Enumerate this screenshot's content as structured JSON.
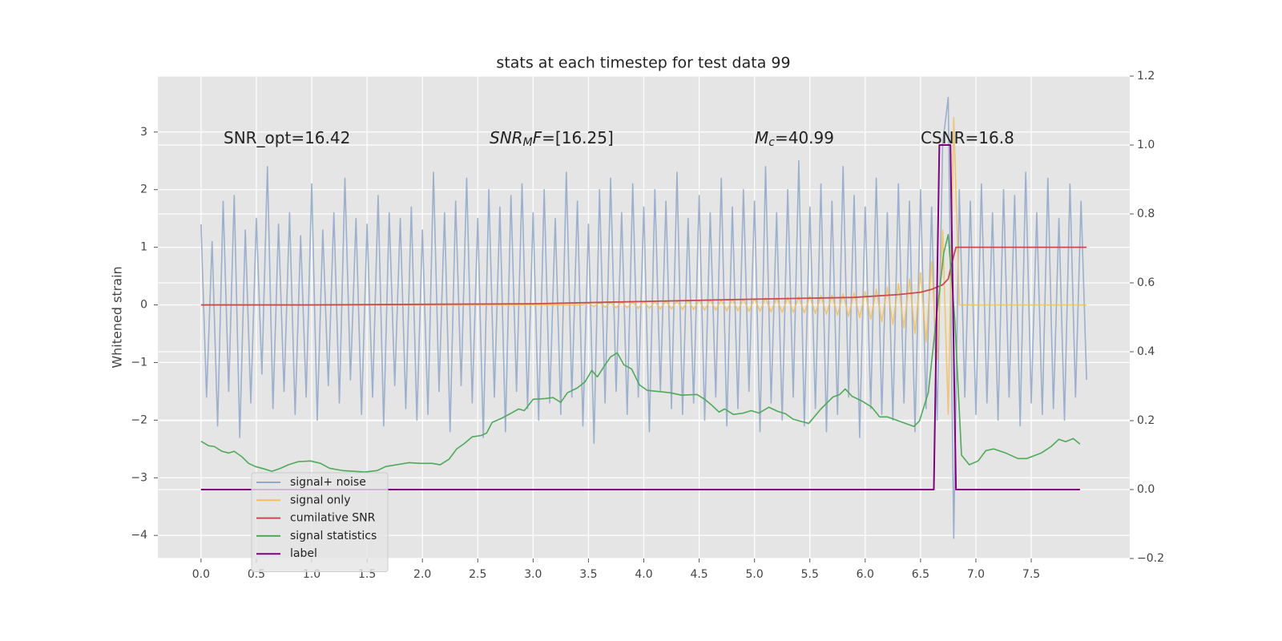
{
  "chart_data": {
    "type": "line",
    "title": "stats at each timestep for test data 99",
    "ylabel": "Whitened strain",
    "annotations": [
      [
        "SNR_opt=16.42"
      ],
      [
        "SNR",
        "M",
        "F",
        "=[16.25]"
      ],
      [
        "M",
        "c",
        "=40.99"
      ],
      [
        "CSNR=16.8"
      ]
    ],
    "xlim": [
      -0.39,
      8.39
    ],
    "ylim": [
      -4.4,
      3.97
    ],
    "y2lim": [
      -0.2,
      1.2
    ],
    "xticks": [
      {
        "value": 0,
        "label": "0.0"
      },
      {
        "value": 0.5,
        "label": "0.5"
      },
      {
        "value": 1,
        "label": "1.0"
      },
      {
        "value": 1.5,
        "label": "1.5"
      },
      {
        "value": 2,
        "label": "2.0"
      },
      {
        "value": 2.5,
        "label": "2.5"
      },
      {
        "value": 3,
        "label": "3.0"
      },
      {
        "value": 3.5,
        "label": "3.5"
      },
      {
        "value": 4,
        "label": "4.0"
      },
      {
        "value": 4.5,
        "label": "4.5"
      },
      {
        "value": 5,
        "label": "5.0"
      },
      {
        "value": 5.5,
        "label": "5.5"
      },
      {
        "value": 6,
        "label": "6.0"
      },
      {
        "value": 6.5,
        "label": "6.5"
      },
      {
        "value": 7,
        "label": "7.0"
      },
      {
        "value": 7.5,
        "label": "7.5"
      }
    ],
    "yticks": [
      {
        "value": -4,
        "label": "−4"
      },
      {
        "value": -3,
        "label": "−3"
      },
      {
        "value": -2,
        "label": "−2"
      },
      {
        "value": -1,
        "label": "−1"
      },
      0,
      1,
      2,
      3
    ],
    "y2ticks": [
      {
        "value": -0.2,
        "label": "−0.2"
      },
      {
        "value": 0,
        "label": "0.0"
      },
      {
        "value": 0.2,
        "label": "0.2"
      },
      {
        "value": 0.4,
        "label": "0.4"
      },
      {
        "value": 0.6,
        "label": "0.6"
      },
      {
        "value": 0.8,
        "label": "0.8"
      },
      {
        "value": 1,
        "label": "1.0"
      },
      {
        "value": 1.2,
        "label": "1.2"
      }
    ],
    "grid": true,
    "legend": "lower left",
    "x": [
      0,
      0.05,
      0.1,
      0.15,
      0.2,
      0.25,
      0.3,
      0.35,
      0.4,
      0.45,
      0.5,
      0.55,
      0.6,
      0.65,
      0.7,
      0.75,
      0.8,
      0.85,
      0.9,
      0.95,
      1,
      1.05,
      1.1,
      1.15,
      1.2,
      1.25,
      1.3,
      1.35,
      1.4,
      1.45,
      1.5,
      1.55,
      1.6,
      1.65,
      1.7,
      1.75,
      1.8,
      1.85,
      1.9,
      1.95,
      2,
      2.05,
      2.1,
      2.15,
      2.2,
      2.25,
      2.3,
      2.35,
      2.4,
      2.45,
      2.5,
      2.55,
      2.6,
      2.65,
      2.7,
      2.75,
      2.8,
      2.85,
      2.9,
      2.95,
      3,
      3.05,
      3.1,
      3.15,
      3.2,
      3.25,
      3.3,
      3.35,
      3.4,
      3.45,
      3.5,
      3.55,
      3.6,
      3.65,
      3.7,
      3.75,
      3.8,
      3.85,
      3.9,
      3.95,
      4,
      4.05,
      4.1,
      4.15,
      4.2,
      4.25,
      4.3,
      4.35,
      4.4,
      4.45,
      4.5,
      4.55,
      4.6,
      4.65,
      4.7,
      4.75,
      4.8,
      4.85,
      4.9,
      4.95,
      5,
      5.05,
      5.1,
      5.15,
      5.2,
      5.25,
      5.3,
      5.35,
      5.4,
      5.45,
      5.5,
      5.55,
      5.6,
      5.65,
      5.7,
      5.75,
      5.8,
      5.85,
      5.9,
      5.95,
      6,
      6.05,
      6.1,
      6.15,
      6.2,
      6.25,
      6.3,
      6.35,
      6.4,
      6.45,
      6.5,
      6.55,
      6.6,
      6.65,
      6.7,
      6.75,
      6.8,
      6.85,
      6.9,
      6.95,
      7,
      7.05,
      7.1,
      7.15,
      7.2,
      7.25,
      7.3,
      7.35,
      7.4,
      7.45,
      7.5,
      7.55,
      7.6,
      7.65,
      7.7,
      7.75,
      7.8,
      7.85,
      7.9,
      7.95,
      8
    ],
    "series": [
      {
        "name": "signal+ noise",
        "color": "#94a8ca",
        "values": [
          1.4,
          -1.6,
          1.1,
          -2.1,
          1.8,
          -1.5,
          1.9,
          -2.3,
          1.3,
          -1.7,
          1.5,
          -1.2,
          2.4,
          -1.8,
          1.4,
          -1.5,
          1.6,
          -1.9,
          1.2,
          -1.6,
          2.1,
          -2.0,
          1.3,
          -1.4,
          1.6,
          -1.7,
          2.2,
          -1.3,
          1.5,
          -1.9,
          1.4,
          -1.6,
          1.9,
          -2.1,
          1.6,
          -1.4,
          1.5,
          -1.8,
          1.7,
          -2.0,
          1.3,
          -1.9,
          2.3,
          -1.5,
          1.6,
          -2.2,
          1.8,
          -1.4,
          2.2,
          -1.7,
          1.5,
          -2.3,
          2.0,
          -1.6,
          1.7,
          -2.2,
          1.9,
          -1.5,
          2.1,
          -1.8,
          1.6,
          -2.0,
          2.0,
          -1.7,
          1.5,
          -1.9,
          2.3,
          -1.6,
          1.8,
          -2.1,
          1.4,
          -2.4,
          2.0,
          -1.7,
          2.2,
          -1.5,
          1.6,
          -1.9,
          2.1,
          -1.6,
          1.7,
          -2.2,
          2.0,
          -1.5,
          1.8,
          -1.8,
          2.3,
          -1.9,
          1.5,
          -1.7,
          1.9,
          -2.0,
          1.6,
          -1.6,
          2.2,
          -2.1,
          1.7,
          -1.8,
          2.0,
          -1.5,
          1.8,
          -2.2,
          2.4,
          -1.7,
          1.6,
          -2.0,
          2.0,
          -1.6,
          2.5,
          -2.1,
          1.7,
          -1.8,
          2.1,
          -2.2,
          1.8,
          -1.9,
          2.4,
          -1.6,
          1.9,
          -2.3,
          1.7,
          -1.8,
          2.2,
          -1.9,
          1.6,
          -2.0,
          2.1,
          -1.7,
          1.8,
          -2.2,
          2.0,
          -1.8,
          1.7,
          -2.0,
          2.8,
          3.6,
          -4.05,
          2.0,
          -1.6,
          1.8,
          -1.9,
          2.1,
          -1.7,
          1.6,
          -2.0,
          2.0,
          -1.6,
          1.9,
          -2.1,
          2.3,
          -1.7,
          1.6,
          -1.9,
          2.2,
          -1.8,
          1.5,
          -2.0,
          2.1,
          -1.6,
          1.8,
          -1.3
        ]
      },
      {
        "name": "signal only",
        "color": "#f2be5c",
        "values": [
          0,
          0,
          0,
          0,
          0,
          0,
          0,
          0,
          0,
          0,
          0,
          0,
          0,
          0,
          0,
          0,
          0,
          0,
          0,
          0,
          0,
          0,
          0,
          0,
          0,
          0,
          0,
          0,
          0,
          0,
          0,
          0,
          0,
          0,
          0,
          0,
          0,
          0,
          0,
          0,
          0,
          0,
          0,
          0,
          0,
          0,
          0,
          0,
          0,
          0,
          0,
          0,
          0,
          0,
          0,
          0,
          0,
          0,
          0,
          0,
          0,
          0,
          0,
          0,
          0,
          0,
          0,
          0,
          0,
          0,
          0.03,
          -0.03,
          0.04,
          -0.04,
          0.04,
          -0.05,
          0.05,
          -0.05,
          0.05,
          -0.06,
          0.06,
          -0.06,
          0.06,
          -0.07,
          0.07,
          -0.07,
          0.07,
          -0.08,
          0.08,
          -0.08,
          0.08,
          -0.09,
          0.09,
          -0.09,
          0.09,
          -0.1,
          0.1,
          -0.1,
          0.1,
          -0.11,
          0.11,
          -0.11,
          0.12,
          -0.12,
          0.12,
          -0.13,
          0.13,
          -0.13,
          0.14,
          -0.14,
          0.15,
          -0.15,
          0.16,
          -0.16,
          0.17,
          -0.18,
          0.19,
          -0.2,
          0.21,
          -0.22,
          0.23,
          -0.25,
          0.27,
          -0.29,
          0.31,
          -0.34,
          0.37,
          -0.4,
          0.45,
          -0.5,
          0.56,
          -0.64,
          0.75,
          -0.95,
          1.3,
          -1.9,
          3.25,
          0,
          0,
          0,
          0,
          0,
          0,
          0,
          0,
          0,
          0,
          0,
          0,
          0,
          0,
          0,
          0,
          0,
          0,
          0,
          0,
          0,
          0,
          0,
          0
        ]
      },
      {
        "name": "cumilative SNR",
        "color": "#c94b4b",
        "x": [
          0,
          1,
          2,
          3,
          4,
          5,
          5.9,
          6.3,
          6.5,
          6.6,
          6.7,
          6.75,
          6.78,
          6.82,
          8
        ],
        "values": [
          0,
          0,
          0.01,
          0.02,
          0.06,
          0.1,
          0.13,
          0.18,
          0.22,
          0.27,
          0.35,
          0.45,
          0.7,
          1.0,
          1.0
        ]
      },
      {
        "name": "signal statistics",
        "color": "#4fa95a",
        "axis": "y2",
        "x": [
          0,
          0.07,
          0.12,
          0.19,
          0.25,
          0.3,
          0.37,
          0.43,
          0.49,
          0.57,
          0.64,
          0.72,
          0.79,
          0.88,
          0.99,
          1.08,
          1.16,
          1.28,
          1.48,
          1.59,
          1.67,
          1.88,
          1.98,
          2.09,
          2.16,
          2.24,
          2.31,
          2.38,
          2.45,
          2.53,
          2.58,
          2.63,
          2.71,
          2.78,
          2.87,
          2.92,
          3.0,
          3.11,
          3.18,
          3.25,
          3.31,
          3.4,
          3.47,
          3.53,
          3.58,
          3.65,
          3.7,
          3.76,
          3.82,
          3.89,
          3.96,
          4.03,
          4.12,
          4.24,
          4.34,
          4.48,
          4.55,
          4.61,
          4.68,
          4.73,
          4.81,
          4.9,
          4.97,
          5.04,
          5.13,
          5.21,
          5.28,
          5.35,
          5.49,
          5.6,
          5.71,
          5.77,
          5.82,
          5.88,
          5.97,
          6.06,
          6.13,
          6.2,
          6.44,
          6.49,
          6.57,
          6.64,
          6.71,
          6.75,
          6.81,
          6.87,
          6.94,
          7.02,
          7.09,
          7.16,
          7.27,
          7.38,
          7.46,
          7.59,
          7.68,
          7.75,
          7.81,
          7.88,
          7.94
        ],
        "values": [
          0.14,
          0.127,
          0.125,
          0.111,
          0.106,
          0.111,
          0.095,
          0.076,
          0.067,
          0.06,
          0.053,
          0.062,
          0.072,
          0.081,
          0.083,
          0.076,
          0.062,
          0.055,
          0.051,
          0.055,
          0.067,
          0.078,
          0.076,
          0.076,
          0.072,
          0.088,
          0.118,
          0.134,
          0.153,
          0.157,
          0.164,
          0.195,
          0.206,
          0.218,
          0.234,
          0.229,
          0.262,
          0.264,
          0.267,
          0.253,
          0.281,
          0.295,
          0.313,
          0.346,
          0.327,
          0.362,
          0.385,
          0.397,
          0.362,
          0.35,
          0.304,
          0.288,
          0.285,
          0.281,
          0.274,
          0.276,
          0.262,
          0.246,
          0.225,
          0.234,
          0.218,
          0.222,
          0.229,
          0.222,
          0.239,
          0.227,
          0.22,
          0.204,
          0.192,
          0.234,
          0.269,
          0.276,
          0.292,
          0.271,
          0.257,
          0.239,
          0.211,
          0.211,
          0.183,
          0.199,
          0.281,
          0.49,
          0.687,
          0.74,
          0.49,
          0.1,
          0.072,
          0.083,
          0.113,
          0.118,
          0.106,
          0.09,
          0.09,
          0.106,
          0.125,
          0.146,
          0.139,
          0.148,
          0.132
        ]
      },
      {
        "name": "label",
        "color": "#800080",
        "axis": "y2",
        "x": [
          0,
          6.62,
          6.67,
          6.77,
          6.82,
          7.94
        ],
        "values": [
          0,
          0,
          1,
          1,
          0,
          0
        ]
      }
    ]
  }
}
